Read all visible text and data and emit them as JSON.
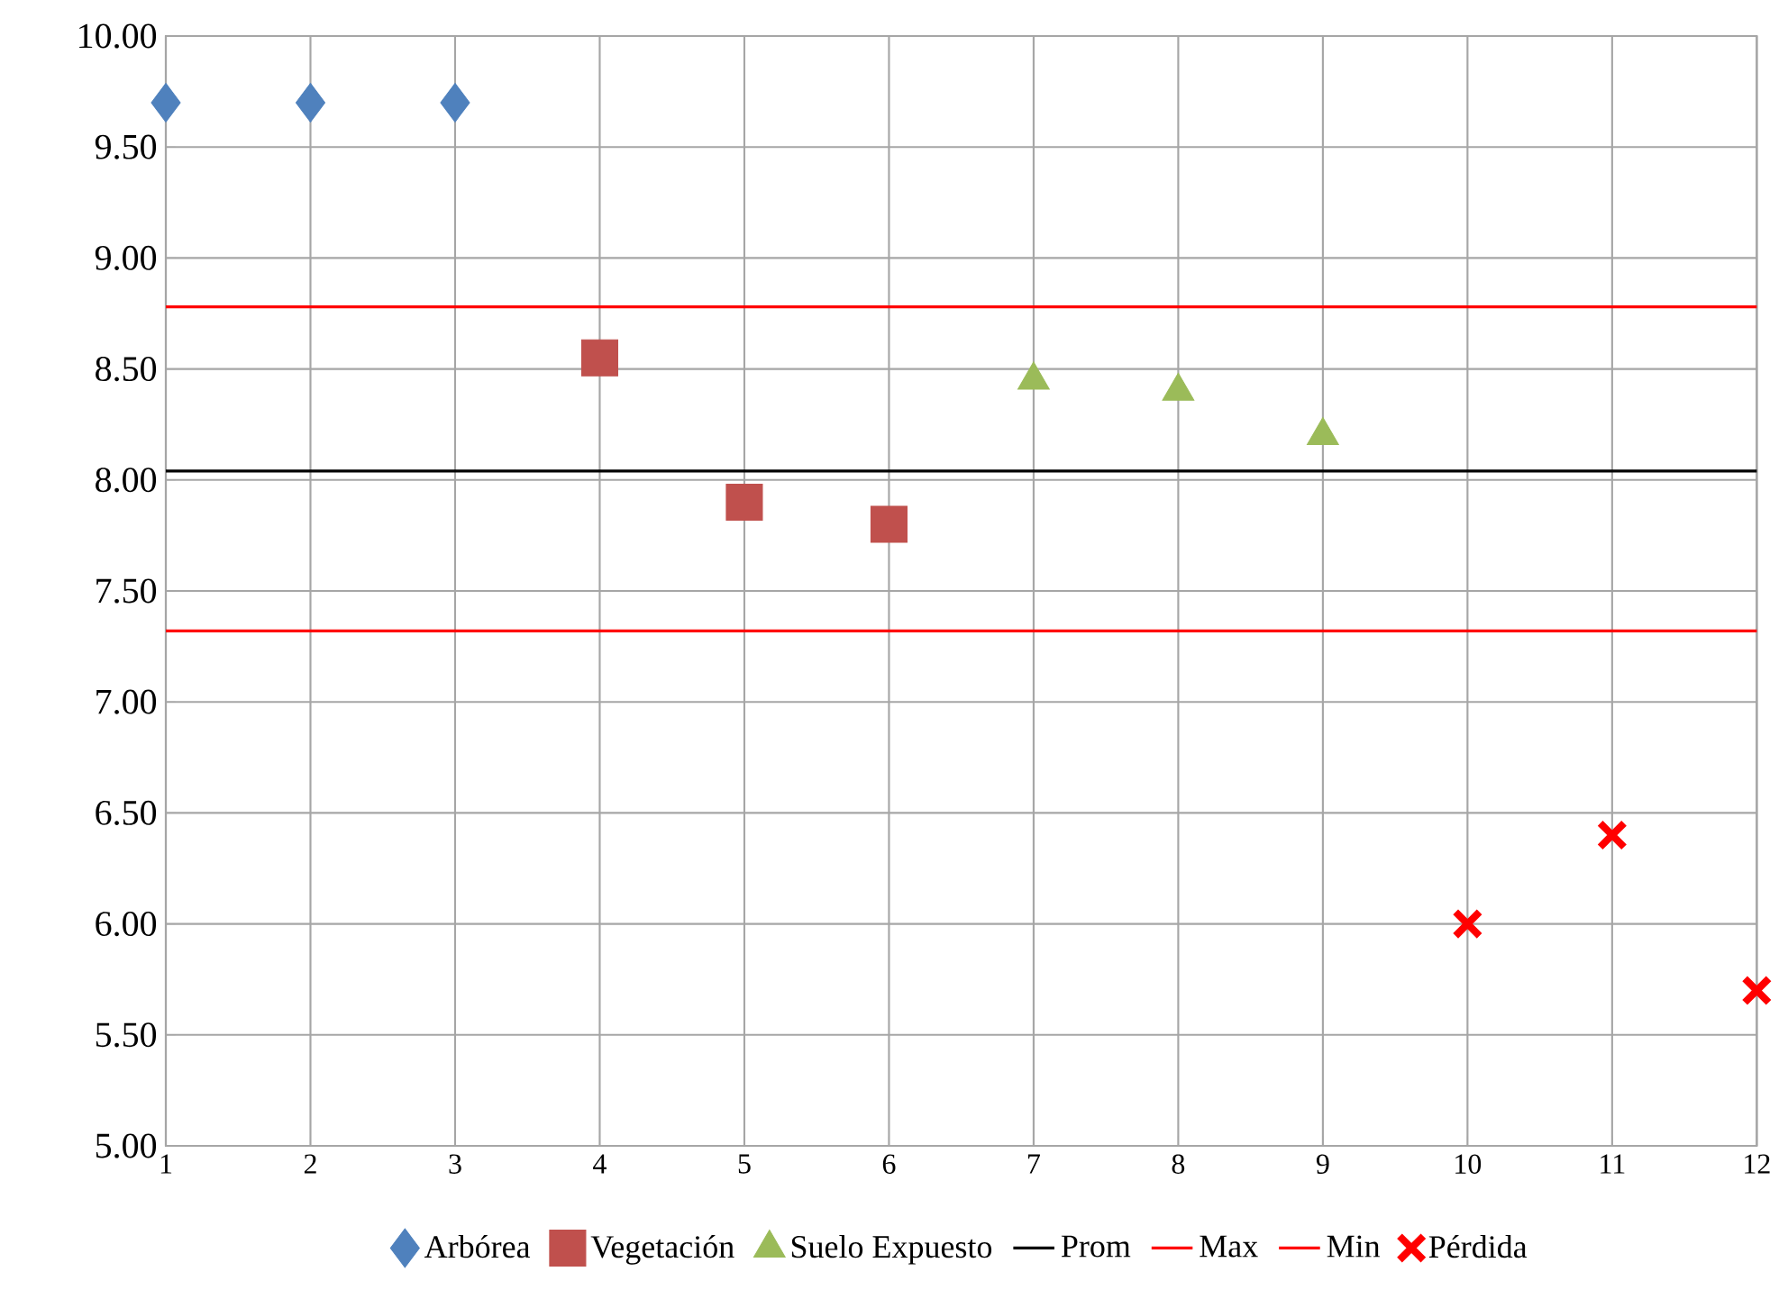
{
  "chart_data": {
    "type": "scatter",
    "xlim": [
      1,
      12
    ],
    "xticks": [
      1,
      2,
      3,
      4,
      5,
      6,
      7,
      8,
      9,
      10,
      11,
      12
    ],
    "ylim": [
      5,
      10
    ],
    "yticks": [
      {
        "value": 5,
        "label": "5.00"
      },
      {
        "value": 5.5,
        "label": "5.50"
      },
      {
        "value": 6,
        "label": "6.00"
      },
      {
        "value": 6.5,
        "label": "6.50"
      },
      {
        "value": 7,
        "label": "7.00"
      },
      {
        "value": 7.5,
        "label": "7.50"
      },
      {
        "value": 8,
        "label": "8.00"
      },
      {
        "value": 8.5,
        "label": "8.50"
      },
      {
        "value": 9,
        "label": "9.00"
      },
      {
        "value": 9.5,
        "label": "9.50"
      },
      {
        "value": 10,
        "label": "10.00"
      }
    ],
    "grid": true,
    "legend": "bottom",
    "series": [
      {
        "name": "Arbórea",
        "marker": "diamond",
        "color": "#4f81bd",
        "x": [
          1,
          2,
          3
        ],
        "values": [
          9.7,
          9.7,
          9.7
        ]
      },
      {
        "name": "Vegetación",
        "marker": "square",
        "color": "#c0504d",
        "x": [
          4,
          5,
          6
        ],
        "values": [
          8.55,
          7.9,
          7.8
        ]
      },
      {
        "name": "Suelo Expuesto",
        "marker": "triangle",
        "color": "#9bbb59",
        "x": [
          7,
          8,
          9
        ],
        "values": [
          8.45,
          8.4,
          8.2
        ]
      },
      {
        "name": "Prom",
        "type": "line",
        "marker": "none",
        "color": "#000000",
        "x": [
          1,
          2,
          3,
          4,
          5,
          6,
          7,
          8,
          9,
          10,
          11,
          12
        ],
        "values": [
          8.04,
          8.04,
          8.04,
          8.04,
          8.04,
          8.04,
          8.04,
          8.04,
          8.04,
          8.04,
          8.04,
          8.04
        ]
      },
      {
        "name": "Max",
        "type": "line",
        "marker": "none",
        "color": "#ff0000",
        "x": [
          1,
          2,
          3,
          4,
          5,
          6,
          7,
          8,
          9,
          10,
          11,
          12
        ],
        "values": [
          8.78,
          8.78,
          8.78,
          8.78,
          8.78,
          8.78,
          8.78,
          8.78,
          8.78,
          8.78,
          8.78,
          8.78
        ]
      },
      {
        "name": "Min",
        "type": "line",
        "marker": "none",
        "color": "#ff0000",
        "x": [
          1,
          2,
          3,
          4,
          5,
          6,
          7,
          8,
          9,
          10,
          11,
          12
        ],
        "values": [
          7.32,
          7.32,
          7.32,
          7.32,
          7.32,
          7.32,
          7.32,
          7.32,
          7.32,
          7.32,
          7.32,
          7.32
        ]
      },
      {
        "name": "Pérdida",
        "marker": "cross",
        "color": "#ff0000",
        "x": [
          10,
          11,
          12
        ],
        "values": [
          6.0,
          6.4,
          5.7
        ]
      }
    ]
  }
}
